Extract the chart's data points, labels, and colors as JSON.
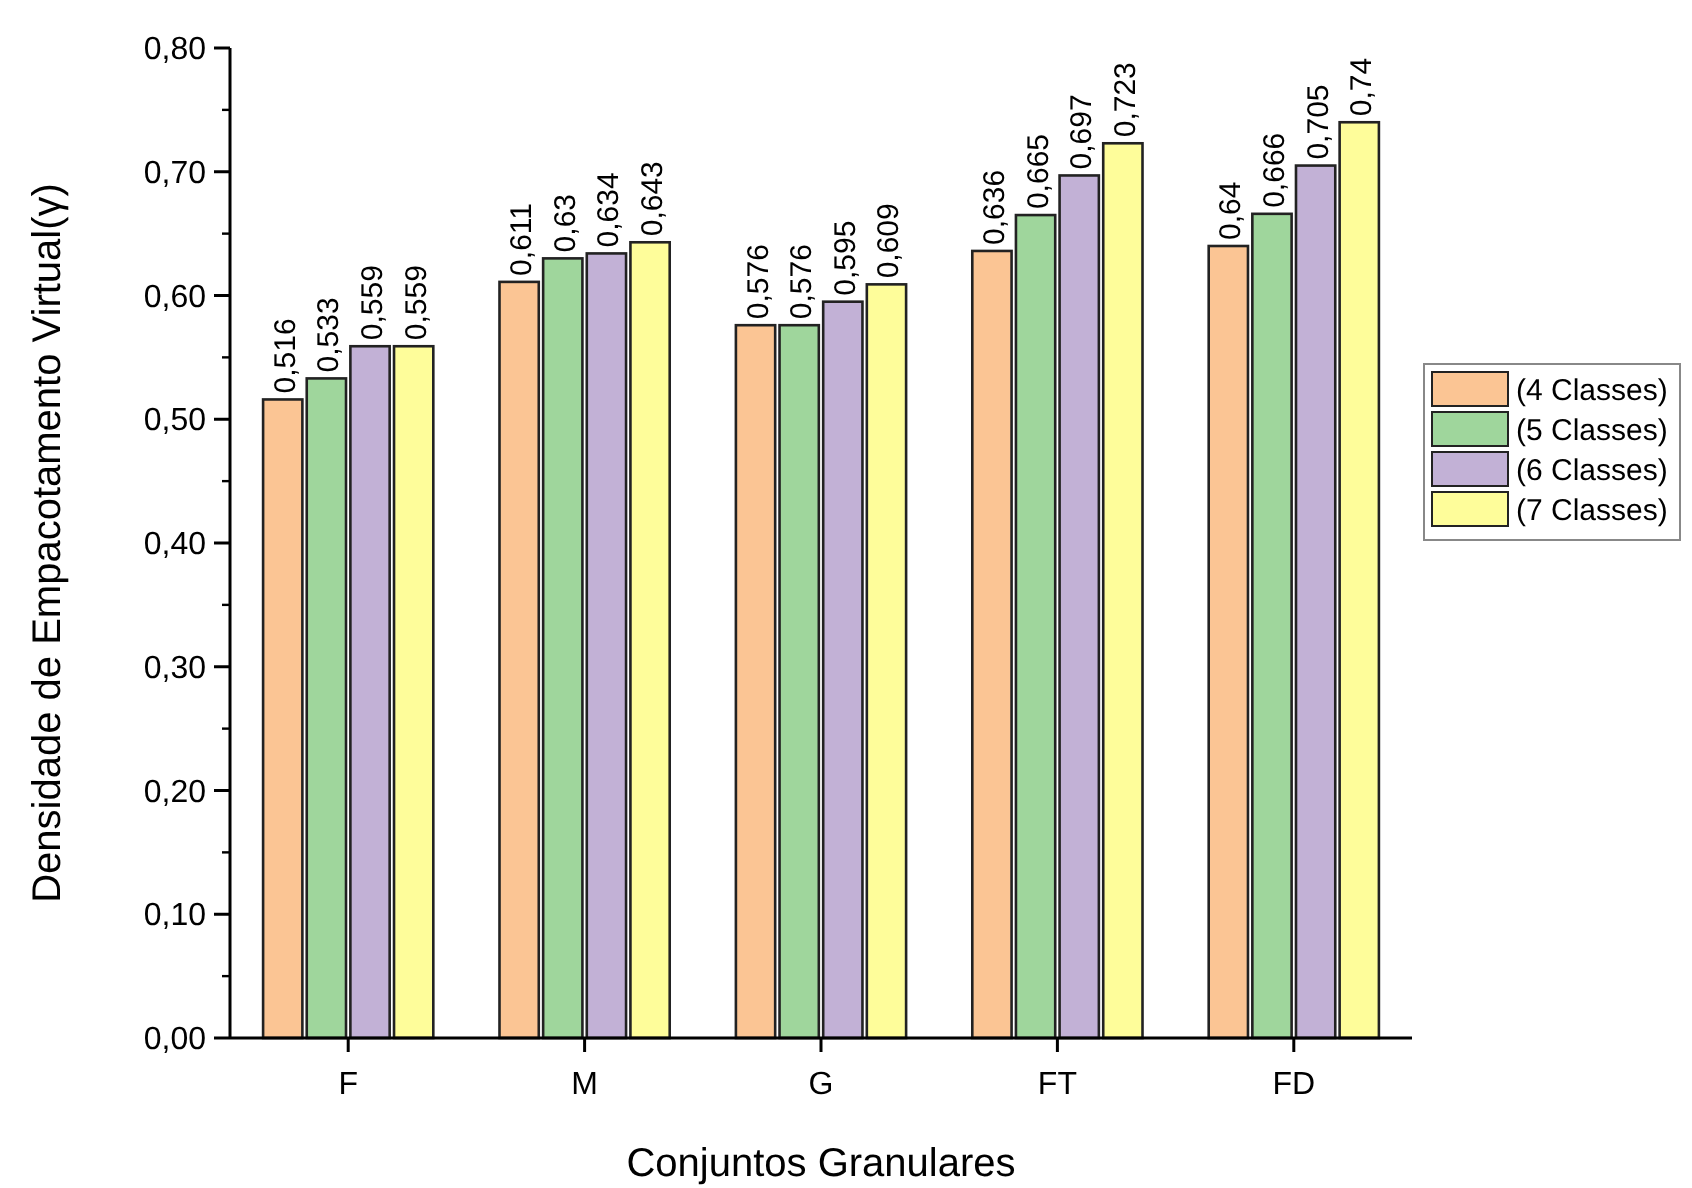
{
  "chart_data": {
    "type": "bar",
    "xlabel": "Conjuntos Granulares",
    "ylabel": "Densidade de Empacotamento Virtual(γ)",
    "categories": [
      "F",
      "M",
      "G",
      "FT",
      "FD"
    ],
    "series": [
      {
        "name": "(4 Classes)",
        "color": "#fbc594",
        "values": [
          0.516,
          0.611,
          0.576,
          0.636,
          0.64
        ],
        "value_labels": [
          "0,516",
          "0,611",
          "0,576",
          "0,636",
          "0,64"
        ]
      },
      {
        "name": "(5 Classes)",
        "color": "#9fd69c",
        "values": [
          0.533,
          0.63,
          0.576,
          0.665,
          0.666
        ],
        "value_labels": [
          "0,533",
          "0,63",
          "0,576",
          "0,665",
          "0,666"
        ]
      },
      {
        "name": "(6 Classes)",
        "color": "#c2b1d6",
        "values": [
          0.559,
          0.634,
          0.595,
          0.697,
          0.705
        ],
        "value_labels": [
          "0,559",
          "0,634",
          "0,595",
          "0,697",
          "0,705"
        ]
      },
      {
        "name": "(7 Classes)",
        "color": "#fefd9a",
        "values": [
          0.559,
          0.643,
          0.609,
          0.723,
          0.74
        ],
        "value_labels": [
          "0,559",
          "0,643",
          "0,609",
          "0,723",
          "0,74"
        ]
      }
    ],
    "ylim": [
      0,
      0.8
    ],
    "yticks": [
      {
        "value": 0,
        "label": "0,00"
      },
      {
        "value": 0.1,
        "label": "0,10"
      },
      {
        "value": 0.2,
        "label": "0,20"
      },
      {
        "value": 0.3,
        "label": "0,30"
      },
      {
        "value": 0.4,
        "label": "0,40"
      },
      {
        "value": 0.5,
        "label": "0,50"
      },
      {
        "value": 0.6,
        "label": "0,60"
      },
      {
        "value": 0.7,
        "label": "0,70"
      },
      {
        "value": 0.8,
        "label": "0,80"
      }
    ],
    "legend": "right",
    "grid": false
  }
}
